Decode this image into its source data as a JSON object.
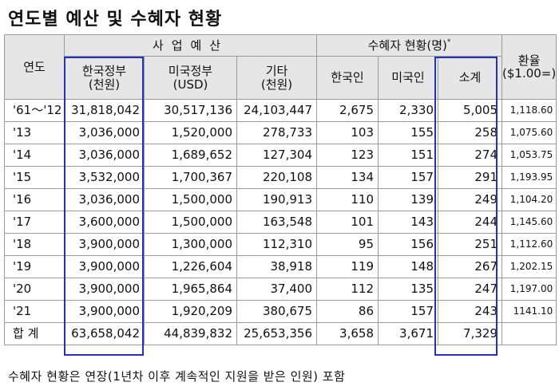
{
  "title": "연도별 예산 및 수혜자 현황",
  "header": {
    "year": "연도",
    "budget_group": "사업예산",
    "beneficiary_group": "수혜자 현황(명)",
    "beneficiary_mark": "*",
    "korea_gov_line1": "한국정부",
    "korea_gov_line2": "(천원)",
    "us_gov_line1": "미국정부",
    "us_gov_line2": "(USD)",
    "other_line1": "기타",
    "other_line2": "(천원)",
    "korean": "한국인",
    "american": "미국인",
    "subtotal": "소계",
    "rate_line1": "환율",
    "rate_line2": "($1.00=)"
  },
  "rows": [
    {
      "year": "'61～'12",
      "korea_gov": "31,818,042",
      "us_gov": "30,517,136",
      "other": "24,103,447",
      "korean": "2,675",
      "american": "2,330",
      "subtotal": "5,005",
      "rate": "1,118.60"
    },
    {
      "year": "'13",
      "korea_gov": "3,036,000",
      "us_gov": "1,520,000",
      "other": "278,733",
      "korean": "103",
      "american": "155",
      "subtotal": "258",
      "rate": "1,075.60"
    },
    {
      "year": "'14",
      "korea_gov": "3,036,000",
      "us_gov": "1,689,652",
      "other": "127,304",
      "korean": "123",
      "american": "151",
      "subtotal": "274",
      "rate": "1,053.75"
    },
    {
      "year": "'15",
      "korea_gov": "3,532,000",
      "us_gov": "1,700,367",
      "other": "220,108",
      "korean": "134",
      "american": "157",
      "subtotal": "291",
      "rate": "1,193.95"
    },
    {
      "year": "'16",
      "korea_gov": "3,036,000",
      "us_gov": "1,500,000",
      "other": "190,913",
      "korean": "110",
      "american": "139",
      "subtotal": "249",
      "rate": "1,104.20"
    },
    {
      "year": "'17",
      "korea_gov": "3,600,000",
      "us_gov": "1,500,000",
      "other": "163,548",
      "korean": "101",
      "american": "143",
      "subtotal": "244",
      "rate": "1,145.60"
    },
    {
      "year": "'18",
      "korea_gov": "3,900,000",
      "us_gov": "1,300,000",
      "other": "112,310",
      "korean": "95",
      "american": "156",
      "subtotal": "251",
      "rate": "1,112.60"
    },
    {
      "year": "'19",
      "korea_gov": "3,900,000",
      "us_gov": "1,226,604",
      "other": "38,918",
      "korean": "119",
      "american": "148",
      "subtotal": "267",
      "rate": "1,202.15"
    },
    {
      "year": "'20",
      "korea_gov": "3,900,000",
      "us_gov": "1,965,864",
      "other": "37,400",
      "korean": "112",
      "american": "135",
      "subtotal": "247",
      "rate": "1,197.00"
    },
    {
      "year": "'21",
      "korea_gov": "3,900,000",
      "us_gov": "1,920,209",
      "other": "380,675",
      "korean": "86",
      "american": "157",
      "subtotal": "243",
      "rate": "1141.10"
    }
  ],
  "total": {
    "label": "합 계",
    "korea_gov": "63,658,042",
    "us_gov": "44,839,832",
    "other": "25,653,356",
    "korean": "3,658",
    "american": "3,671",
    "subtotal": "7,329"
  },
  "footnote": "수혜자 현황은 연장(1년차 이후 계속적인 지원을 받은 인원) 포함",
  "colors": {
    "header_bg": "#e6e6e6",
    "highlight_border": "#2233bb",
    "grid": "#9a9a9a"
  }
}
